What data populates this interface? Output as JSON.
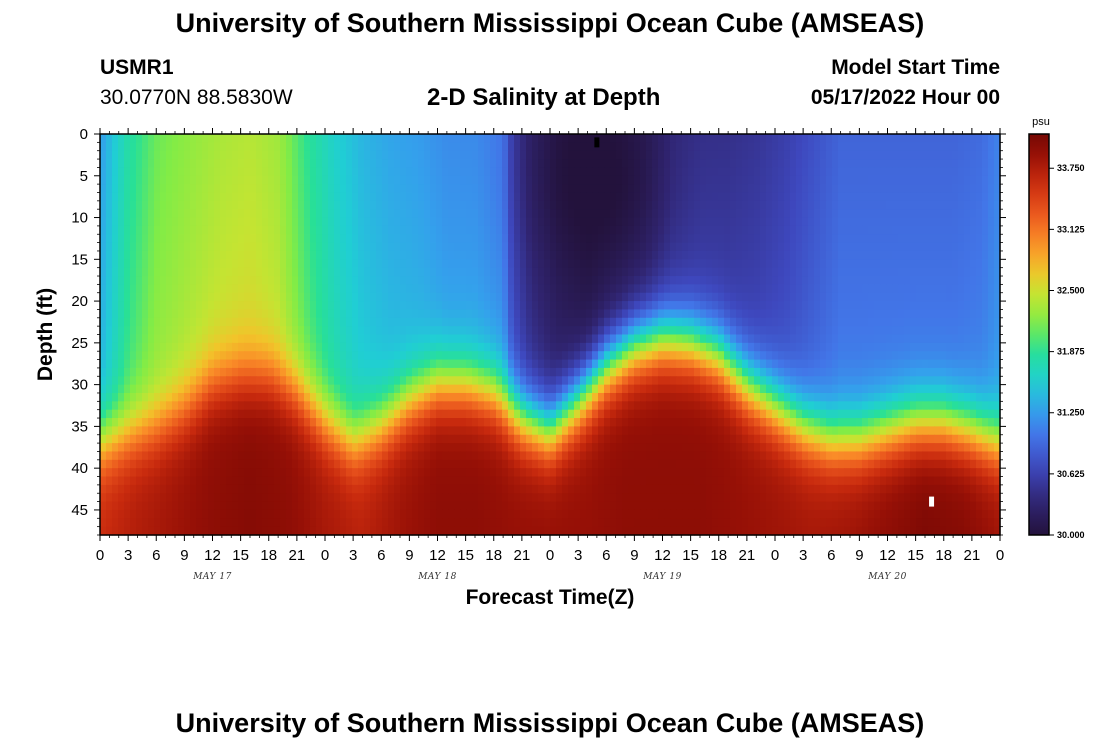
{
  "header": {
    "title": "University of Southern Mississippi Ocean Cube (AMSEAS)",
    "station_name": "USMR1",
    "station_coords": "30.0770N  88.5830W",
    "subtitle": "2-D Salinity at Depth",
    "model_start_label": "Model Start Time",
    "model_start_value": "05/17/2022 Hour 00"
  },
  "footer": {
    "title": "University of Southern Mississippi Ocean Cube (AMSEAS)"
  },
  "chart_data": {
    "type": "heatmap",
    "title": "2-D Salinity at Depth",
    "xlabel": "Forecast Time(Z)",
    "ylabel": "Depth (ft)",
    "x_tick_labels": [
      "0",
      "3",
      "6",
      "9",
      "12",
      "15",
      "18",
      "21",
      "0",
      "3",
      "6",
      "9",
      "12",
      "15",
      "18",
      "21",
      "0",
      "3",
      "6",
      "9",
      "12",
      "15",
      "18",
      "21",
      "0",
      "3",
      "6",
      "9",
      "12",
      "15",
      "18",
      "21",
      "0"
    ],
    "x_range_hours": [
      0,
      96
    ],
    "day_labels": [
      {
        "text": "MAY 17",
        "hour": 12
      },
      {
        "text": "MAY 18",
        "hour": 36
      },
      {
        "text": "MAY 19",
        "hour": 60
      },
      {
        "text": "MAY 20",
        "hour": 84
      }
    ],
    "y_ticks": [
      0,
      5,
      10,
      15,
      20,
      25,
      30,
      35,
      40,
      45
    ],
    "y_tick_labels": [
      "0",
      "5",
      "10",
      "15",
      "20",
      "25",
      "30",
      "35",
      "40",
      "45"
    ],
    "y_range_ft": [
      0,
      48
    ],
    "y_inverted": true,
    "colorbar": {
      "units": "psu",
      "range": [
        30.0,
        34.1
      ],
      "ticks": [
        30.0,
        30.625,
        31.25,
        31.875,
        32.5,
        33.125,
        33.75
      ],
      "tick_labels": [
        "30.000",
        "30.625",
        "31.250",
        "31.875",
        "32.500",
        "33.125",
        "33.750"
      ]
    },
    "surface_profile": {
      "hours": [
        0,
        3,
        6,
        10,
        13,
        16,
        19,
        22,
        25,
        28,
        31,
        34,
        37,
        40,
        43,
        44,
        46,
        49,
        52,
        55,
        58,
        61,
        64,
        67,
        70,
        73,
        76,
        79,
        82,
        85,
        88,
        91,
        94,
        96
      ],
      "psu": [
        31.25,
        31.8,
        32.1,
        32.25,
        32.35,
        32.4,
        32.3,
        31.9,
        31.6,
        31.4,
        31.3,
        31.25,
        31.15,
        31.15,
        31.05,
        30.6,
        30.3,
        30.1,
        30.0,
        30.1,
        30.2,
        30.4,
        30.45,
        30.45,
        30.5,
        30.6,
        30.75,
        30.9,
        30.9,
        30.9,
        30.9,
        30.9,
        30.95,
        31.1
      ]
    },
    "bottom_profile": {
      "hours": [
        0,
        4,
        8,
        12,
        16,
        20,
        24,
        28,
        32,
        36,
        40,
        44,
        48,
        52,
        56,
        60,
        64,
        68,
        72,
        76,
        80,
        84,
        88,
        92,
        96
      ],
      "psu": [
        33.6,
        33.75,
        33.85,
        33.95,
        34.0,
        33.95,
        33.8,
        33.7,
        33.85,
        33.95,
        33.95,
        33.9,
        33.9,
        33.9,
        33.95,
        33.95,
        33.95,
        33.9,
        33.85,
        33.8,
        33.85,
        33.95,
        34.05,
        34.0,
        33.85
      ]
    },
    "halocline_depth": {
      "hours": [
        0,
        3,
        6,
        9,
        12,
        15,
        18,
        21,
        24,
        27,
        30,
        33,
        36,
        39,
        42,
        45,
        48,
        51,
        54,
        57,
        60,
        63,
        66,
        69,
        72,
        75,
        78,
        81,
        84,
        87,
        90,
        93,
        96
      ],
      "depth_ft": [
        37,
        36,
        35,
        33,
        30,
        29,
        29,
        31,
        34.5,
        37,
        35,
        32,
        30,
        30,
        31,
        34,
        35.5,
        32,
        28,
        25.5,
        24.5,
        25,
        26.5,
        30,
        32.5,
        35,
        36.5,
        36.5,
        35.5,
        34.5,
        34.5,
        35.5,
        37
      ]
    },
    "fresh_core": {
      "center_hour": 53,
      "center_depth_ft": 6,
      "width_hours": 6,
      "height_ft": 10,
      "min_psu": 29.95
    },
    "markers": [
      {
        "hour": 53,
        "depth_ft": 1,
        "color": "#000000"
      },
      {
        "hour": 88.7,
        "depth_ft": 44,
        "color": "#ffffff"
      }
    ]
  }
}
